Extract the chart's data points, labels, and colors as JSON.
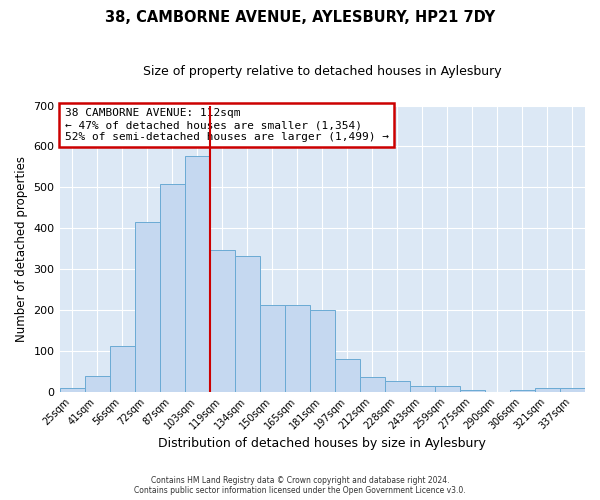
{
  "title": "38, CAMBORNE AVENUE, AYLESBURY, HP21 7DY",
  "subtitle": "Size of property relative to detached houses in Aylesbury",
  "xlabel": "Distribution of detached houses by size in Aylesbury",
  "ylabel": "Number of detached properties",
  "bar_labels": [
    "25sqm",
    "41sqm",
    "56sqm",
    "72sqm",
    "87sqm",
    "103sqm",
    "119sqm",
    "134sqm",
    "150sqm",
    "165sqm",
    "181sqm",
    "197sqm",
    "212sqm",
    "228sqm",
    "243sqm",
    "259sqm",
    "275sqm",
    "290sqm",
    "306sqm",
    "321sqm",
    "337sqm"
  ],
  "bar_values": [
    8,
    37,
    112,
    415,
    507,
    577,
    347,
    333,
    211,
    211,
    200,
    80,
    35,
    25,
    13,
    13,
    5,
    0,
    5,
    8,
    8
  ],
  "bar_color": "#c5d8f0",
  "bar_edge_color": "#6aaad4",
  "vline_x": 5.5,
  "vline_color": "#cc0000",
  "annotation_box_text": "38 CAMBORNE AVENUE: 112sqm\n← 47% of detached houses are smaller (1,354)\n52% of semi-detached houses are larger (1,499) →",
  "annotation_box_color": "#cc0000",
  "ylim": [
    0,
    700
  ],
  "yticks": [
    0,
    100,
    200,
    300,
    400,
    500,
    600,
    700
  ],
  "background_color": "#dce8f5",
  "footer_line1": "Contains HM Land Registry data © Crown copyright and database right 2024.",
  "footer_line2": "Contains public sector information licensed under the Open Government Licence v3.0."
}
